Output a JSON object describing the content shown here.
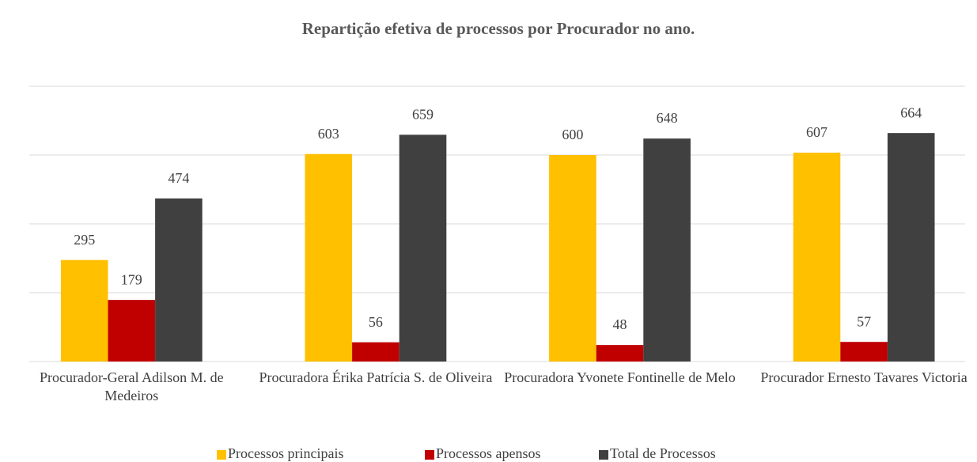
{
  "chart_data": {
    "type": "bar",
    "title": "Repartição  efetiva de processos  por Procurador  no ano.",
    "categories": [
      "Procurador-Geral Adilson M. de Medeiros",
      "Procuradora Érika Patrícia S. de Oliveira",
      "Procuradora Yvonete Fontinelle de Melo",
      "Procurador Ernesto Tavares Victoria"
    ],
    "series": [
      {
        "name": "Processos principais",
        "color": "#ffc000",
        "values": [
          295,
          603,
          600,
          607
        ]
      },
      {
        "name": "Processos apensos",
        "color": "#c00000",
        "values": [
          179,
          56,
          48,
          57
        ]
      },
      {
        "name": "Total de Processos",
        "color": "#404040",
        "values": [
          474,
          659,
          648,
          664
        ]
      }
    ],
    "ylim": [
      0,
      800
    ],
    "yticks": [
      0,
      200,
      400,
      600,
      800
    ],
    "grid": true,
    "legend": "bottom"
  }
}
